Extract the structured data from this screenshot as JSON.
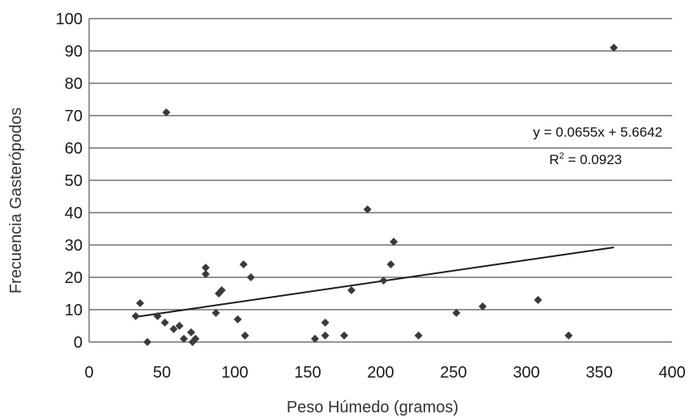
{
  "chart_data": {
    "type": "scatter",
    "xlabel": "Peso Húmedo (gramos)",
    "ylabel": "Frecuencia Gasterópodos",
    "xlim": [
      0,
      400
    ],
    "ylim": [
      0,
      100
    ],
    "x_ticks": [
      0,
      50,
      100,
      150,
      200,
      250,
      300,
      350,
      400
    ],
    "y_ticks": [
      0,
      10,
      20,
      30,
      40,
      50,
      60,
      70,
      80,
      90,
      100
    ],
    "grid": "horizontal",
    "marker": "diamond",
    "point_color": "#3a3a3a",
    "points": [
      {
        "x": 32,
        "y": 8
      },
      {
        "x": 35,
        "y": 12
      },
      {
        "x": 40,
        "y": 0
      },
      {
        "x": 47,
        "y": 8
      },
      {
        "x": 52,
        "y": 6
      },
      {
        "x": 53,
        "y": 71
      },
      {
        "x": 58,
        "y": 4
      },
      {
        "x": 62,
        "y": 5
      },
      {
        "x": 65,
        "y": 1
      },
      {
        "x": 70,
        "y": 3
      },
      {
        "x": 71,
        "y": 0
      },
      {
        "x": 73,
        "y": 1
      },
      {
        "x": 80,
        "y": 23
      },
      {
        "x": 80,
        "y": 21
      },
      {
        "x": 87,
        "y": 9
      },
      {
        "x": 89,
        "y": 15
      },
      {
        "x": 91,
        "y": 16
      },
      {
        "x": 102,
        "y": 7
      },
      {
        "x": 106,
        "y": 24
      },
      {
        "x": 107,
        "y": 2
      },
      {
        "x": 111,
        "y": 20
      },
      {
        "x": 155,
        "y": 1
      },
      {
        "x": 162,
        "y": 6
      },
      {
        "x": 162,
        "y": 2
      },
      {
        "x": 175,
        "y": 2
      },
      {
        "x": 180,
        "y": 16
      },
      {
        "x": 191,
        "y": 41
      },
      {
        "x": 202,
        "y": 19
      },
      {
        "x": 207,
        "y": 24
      },
      {
        "x": 209,
        "y": 31
      },
      {
        "x": 226,
        "y": 2
      },
      {
        "x": 252,
        "y": 9
      },
      {
        "x": 270,
        "y": 11
      },
      {
        "x": 308,
        "y": 13
      },
      {
        "x": 329,
        "y": 2
      },
      {
        "x": 360,
        "y": 91
      }
    ],
    "trendline": {
      "slope": 0.0655,
      "intercept": 5.6642,
      "x_range": [
        32,
        360
      ],
      "equation": "y = 0.0655x + 5.6642",
      "r2_label": "R",
      "r2_exponent": "2",
      "r2_value": " = 0.0923"
    }
  }
}
